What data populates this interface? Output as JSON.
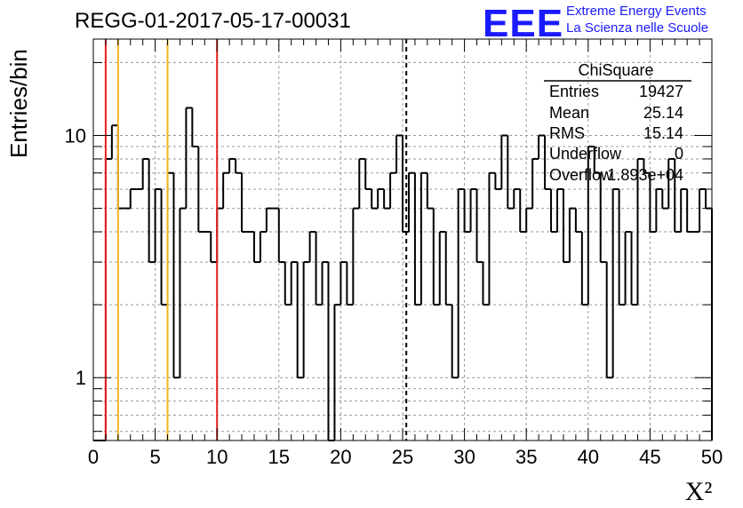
{
  "header": {
    "title": "REGG-01-2017-05-17-00031",
    "logo_mark": "EEE",
    "logo_line1": "Extreme Energy Events",
    "logo_line2": "La Scienza nelle Scuole"
  },
  "stats": {
    "title": "ChiSquare",
    "rows": [
      {
        "label": "Entries",
        "value": "19427"
      },
      {
        "label": "Mean",
        "value": "25.14"
      },
      {
        "label": "RMS",
        "value": "15.14"
      },
      {
        "label": "Underflow",
        "value": "0"
      },
      {
        "label": "Overflow",
        "value": "1.893e+04"
      }
    ]
  },
  "chart_data": {
    "type": "histogram",
    "xlabel": "X²",
    "ylabel": "Entries/bin",
    "xlim": [
      0,
      50
    ],
    "ylim": [
      0.55,
      25
    ],
    "y_scale": "log",
    "grid": true,
    "bin_width": 0.5,
    "x_ticks": [
      "0",
      "5",
      "10",
      "15",
      "20",
      "25",
      "30",
      "35",
      "40",
      "45",
      "50"
    ],
    "y_ticks": [
      {
        "value": 1,
        "label": "1"
      },
      {
        "value": 10,
        "label": "10"
      }
    ],
    "values": [
      0,
      0,
      8,
      11,
      5,
      5,
      6,
      6,
      8,
      3,
      6,
      2,
      7,
      1,
      5,
      13,
      9,
      4,
      4,
      3,
      5,
      7,
      8,
      7,
      4,
      4,
      3,
      4,
      5,
      5,
      3,
      2,
      3,
      1,
      3,
      4,
      2,
      3,
      0,
      2,
      3,
      2,
      5,
      8,
      6,
      5,
      6,
      5,
      7,
      10,
      4,
      7,
      2,
      7,
      5,
      2,
      4,
      2,
      1,
      6,
      4,
      6,
      3,
      2,
      7,
      6,
      10,
      5,
      6,
      4,
      5,
      8,
      10,
      6,
      4,
      6,
      3,
      5,
      4,
      2,
      9,
      7,
      3,
      1,
      6,
      2,
      4,
      2,
      8,
      7,
      4,
      6,
      5,
      8,
      4,
      6,
      4,
      4,
      6,
      5
    ],
    "markers": [
      {
        "x": 1,
        "color": "#e8201d"
      },
      {
        "x": 2,
        "color": "#f2b51d"
      },
      {
        "x": 6,
        "color": "#f2b51d"
      },
      {
        "x": 10,
        "color": "#e8201d"
      },
      {
        "x": 25.3,
        "color": "#000000",
        "style": "dashed"
      }
    ]
  }
}
